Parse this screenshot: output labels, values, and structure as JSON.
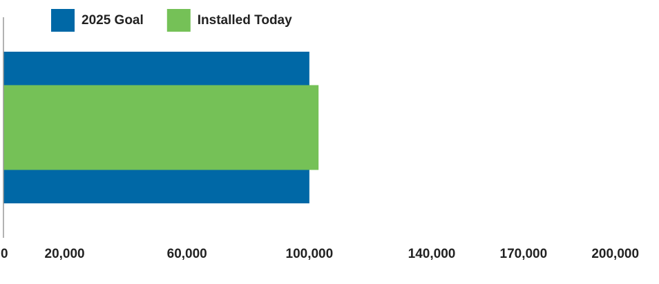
{
  "chart_data": {
    "type": "bar",
    "orientation": "horizontal",
    "categories": [
      null
    ],
    "series": [
      {
        "name": "2025 Goal",
        "color": "#0068a6",
        "values": [
          100000
        ]
      },
      {
        "name": "Installed Today",
        "color": "#75c157",
        "values": [
          103000
        ]
      }
    ],
    "xlim": [
      0,
      210000
    ],
    "xticks": [
      0,
      {
        "value": 20000,
        "label": "20,000"
      },
      {
        "value": 60000,
        "label": "60,000"
      },
      {
        "value": 100000,
        "label": "100,000"
      },
      {
        "value": 140000,
        "label": "140,000"
      },
      {
        "value": 170000,
        "label": "170,000"
      },
      {
        "value": 200000,
        "label": "200,000"
      }
    ],
    "grid": false
  }
}
